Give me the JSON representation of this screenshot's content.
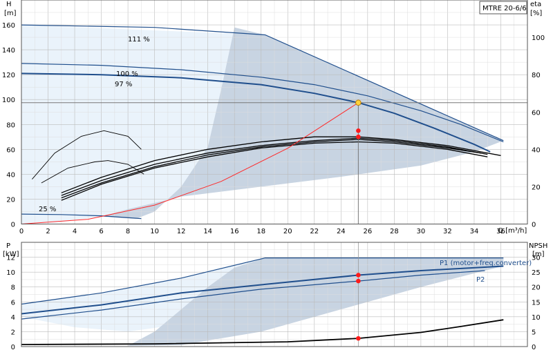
{
  "chart_data": [
    {
      "type": "line",
      "model": "MTRE 20-6/6",
      "ylabel": "H",
      "yunit": "[m]",
      "y2label": "eta",
      "y2unit": "[%]",
      "xlabel": "Q",
      "xunit": "[m³/h]",
      "xlim": [
        0,
        38
      ],
      "ylim": [
        0,
        180
      ],
      "y2lim": [
        0,
        120
      ],
      "x_ticks": [
        0,
        2,
        4,
        6,
        8,
        10,
        12,
        14,
        16,
        18,
        20,
        22,
        24,
        26,
        28,
        30,
        32,
        34,
        36
      ],
      "y_ticks": [
        0,
        20,
        40,
        60,
        80,
        100,
        120,
        140,
        160
      ],
      "y2_ticks": [
        0,
        20,
        40,
        60,
        80,
        100
      ],
      "grid": true,
      "annotations": [
        "111 %",
        "100 %",
        "97 %",
        "25 %"
      ],
      "operating_point": {
        "q": 25.3,
        "h": 97.5,
        "eta": 50,
        "eta_b": 46.7
      },
      "series": [
        {
          "label": "111 %",
          "x": [
            0,
            10,
            18.3,
            36.2
          ],
          "y": [
            160,
            158,
            152,
            67
          ]
        },
        {
          "label": "100 %",
          "x": [
            0,
            6,
            12,
            18,
            22,
            26,
            30,
            33,
            36.2
          ],
          "y": [
            129,
            127.5,
            124,
            118,
            112,
            103,
            91,
            80,
            66
          ]
        },
        {
          "label": "97 %",
          "x": [
            0,
            6,
            12,
            18,
            22,
            25.3,
            28,
            31,
            34,
            35.2
          ],
          "y": [
            121,
            120,
            117.5,
            112,
            105,
            97.5,
            89,
            77,
            64,
            58
          ]
        },
        {
          "label": "25 %",
          "x": [
            0,
            3,
            6,
            9
          ],
          "y": [
            8,
            7.6,
            6.6,
            4.4
          ]
        }
      ],
      "efficiency_curves": [
        {
          "x": [
            3,
            6,
            10,
            14,
            18,
            22,
            25.3,
            28,
            32,
            36
          ],
          "y": [
            16.7,
            25,
            34,
            40,
            44,
            46.7,
            46.7,
            45.3,
            42,
            36.7
          ]
        },
        {
          "x": [
            3,
            6,
            10,
            14,
            18,
            22,
            25.3,
            28,
            32,
            35
          ],
          "y": [
            15.3,
            23.3,
            32,
            38,
            42,
            44.7,
            46,
            44.7,
            41.3,
            37.3
          ]
        },
        {
          "x": [
            3,
            6,
            10,
            14,
            18,
            22,
            25.3,
            28,
            32,
            34.5
          ],
          "y": [
            14,
            22,
            30.7,
            37,
            41.3,
            44,
            45.3,
            44,
            40.7,
            38
          ]
        },
        {
          "x": [
            3,
            6,
            10,
            14,
            18,
            22,
            25.3,
            28,
            32,
            35
          ],
          "y": [
            12.7,
            21.3,
            30,
            36,
            40.7,
            43.3,
            44,
            43.3,
            40,
            36
          ]
        },
        {
          "x": [
            0.8,
            2.5,
            4.5,
            6.2,
            8,
            9
          ],
          "y": [
            24,
            38,
            47,
            50,
            47,
            40
          ]
        },
        {
          "x": [
            1.5,
            3.5,
            5.5,
            6.5,
            8,
            9.2
          ],
          "y": [
            22,
            30,
            33.3,
            34,
            32,
            26.7
          ]
        }
      ],
      "system_curve": {
        "x": [
          0,
          5,
          10,
          15,
          20,
          25.3
        ],
        "y": [
          0,
          3.8,
          15.2,
          34.2,
          60.9,
          97.5
        ]
      }
    },
    {
      "type": "line",
      "ylabel": "P",
      "yunit": "[kW]",
      "y2label": "NPSH",
      "y2unit": "[m]",
      "xlim": [
        0,
        38
      ],
      "ylim": [
        0,
        14
      ],
      "y2lim": [
        0,
        35
      ],
      "y_ticks": [
        0,
        2,
        4,
        6,
        8,
        10,
        12
      ],
      "y2_ticks": [
        0,
        5,
        10,
        15,
        20,
        25,
        30
      ],
      "legend": [
        "P1 (motor+freq.converter)",
        "P2"
      ],
      "operating_point": {
        "p1": 9.6,
        "p2": 8.8,
        "npsh": 2.75
      },
      "series": [
        {
          "label": "P1 (motor+freq.converter)",
          "x": [
            0,
            6,
            12,
            18.3,
            36.2
          ],
          "y": [
            5.7,
            7.2,
            9.2,
            11.9,
            11.9
          ]
        },
        {
          "label": "P2",
          "x": [
            0,
            6,
            12,
            18,
            25.3,
            30,
            36.2
          ],
          "y": [
            4.4,
            5.6,
            7.2,
            8.3,
            9.6,
            10.2,
            10.8
          ]
        },
        {
          "label": "",
          "x": [
            0,
            6,
            12,
            18,
            25.3,
            30,
            34.8
          ],
          "y": [
            3.7,
            4.9,
            6.4,
            7.7,
            8.8,
            9.6,
            10.2
          ]
        },
        {
          "label": "NPSH",
          "x": [
            0,
            10,
            20,
            25.3,
            30,
            33,
            36.2
          ],
          "y": [
            0.7,
            0.9,
            1.6,
            2.75,
            4.75,
            6.75,
            9
          ]
        }
      ]
    }
  ]
}
